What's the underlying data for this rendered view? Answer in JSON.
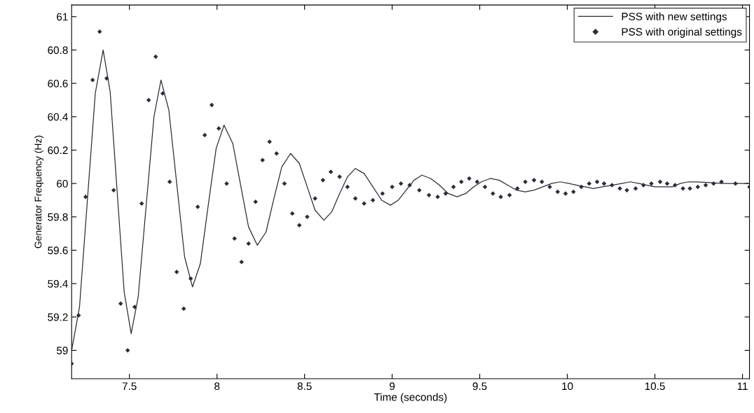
{
  "chart_data": {
    "type": "line",
    "xlabel": "Time (seconds)",
    "ylabel": "Generator Frequency (Hz)",
    "xlim": [
      7.17,
      11.04
    ],
    "xticks": [
      7.5,
      8,
      8.5,
      9,
      9.5,
      10,
      10.5,
      11
    ],
    "ylim": [
      58.83,
      61.07
    ],
    "yticks": [
      59,
      59.2,
      59.4,
      59.6,
      59.8,
      60,
      60.2,
      60.4,
      60.6,
      60.8,
      61
    ],
    "grid": false,
    "legend": "top right",
    "series": [
      {
        "name": "PSS with new settings",
        "marker": "none",
        "line_style": "solid",
        "color": "#2a2e38",
        "x": [
          7.17,
          7.215,
          7.26,
          7.305,
          7.35,
          7.39,
          7.43,
          7.47,
          7.51,
          7.55,
          7.595,
          7.64,
          7.68,
          7.725,
          7.77,
          7.815,
          7.86,
          7.905,
          7.95,
          7.995,
          8.04,
          8.09,
          8.135,
          8.18,
          8.23,
          8.28,
          8.325,
          8.37,
          8.42,
          8.47,
          8.515,
          8.56,
          8.61,
          8.655,
          8.7,
          8.745,
          8.79,
          8.84,
          8.89,
          8.94,
          8.99,
          9.035,
          9.08,
          9.125,
          9.17,
          9.22,
          9.27,
          9.32,
          9.37,
          9.42,
          9.465,
          9.51,
          9.56,
          9.61,
          9.66,
          9.71,
          9.76,
          9.81,
          9.86,
          9.91,
          9.96,
          10.01,
          10.055,
          10.1,
          10.15,
          10.2,
          10.255,
          10.31,
          10.36,
          10.41,
          10.455,
          10.5,
          10.55,
          10.6,
          10.645,
          10.69,
          10.74,
          10.89,
          11.04
        ],
        "values": [
          59.0,
          59.26,
          59.9,
          60.54,
          60.8,
          60.55,
          59.95,
          59.35,
          59.1,
          59.32,
          59.86,
          60.4,
          60.62,
          60.44,
          60.0,
          59.56,
          59.38,
          59.52,
          59.87,
          60.21,
          60.35,
          60.24,
          59.99,
          59.74,
          59.63,
          59.71,
          59.91,
          60.1,
          60.18,
          60.12,
          59.98,
          59.84,
          59.78,
          59.83,
          59.94,
          60.04,
          60.09,
          60.06,
          59.98,
          59.9,
          59.87,
          59.9,
          59.96,
          60.02,
          60.05,
          60.03,
          59.99,
          59.94,
          59.92,
          59.94,
          59.98,
          60.01,
          60.03,
          60.02,
          59.99,
          59.96,
          59.95,
          59.96,
          59.98,
          60.0,
          60.01,
          60.0,
          59.99,
          59.98,
          59.97,
          59.98,
          59.99,
          60.0,
          60.01,
          60.0,
          59.99,
          59.98,
          59.98,
          59.98,
          60.0,
          60.01,
          60.01,
          60.0,
          60.0
        ]
      },
      {
        "name": "PSS with original settings",
        "type": "scatter",
        "marker": "diamond",
        "color": "#2a2e38",
        "x": [
          7.17,
          7.21,
          7.25,
          7.29,
          7.33,
          7.37,
          7.41,
          7.45,
          7.49,
          7.53,
          7.57,
          7.61,
          7.65,
          7.69,
          7.73,
          7.77,
          7.81,
          7.85,
          7.89,
          7.93,
          7.97,
          8.01,
          8.055,
          8.1,
          8.14,
          8.18,
          8.22,
          8.26,
          8.3,
          8.34,
          8.385,
          8.43,
          8.47,
          8.515,
          8.56,
          8.605,
          8.65,
          8.7,
          8.745,
          8.79,
          8.84,
          8.89,
          8.945,
          9.0,
          9.05,
          9.1,
          9.155,
          9.21,
          9.26,
          9.305,
          9.35,
          9.395,
          9.44,
          9.485,
          9.53,
          9.575,
          9.62,
          9.67,
          9.715,
          9.76,
          9.81,
          9.855,
          9.9,
          9.945,
          9.99,
          10.035,
          10.08,
          10.125,
          10.17,
          10.21,
          10.255,
          10.3,
          10.34,
          10.39,
          10.435,
          10.48,
          10.53,
          10.57,
          10.615,
          10.66,
          10.7,
          10.745,
          10.79,
          10.835,
          10.88,
          10.96,
          11.04
        ],
        "values": [
          58.92,
          59.21,
          59.92,
          60.62,
          60.91,
          60.63,
          59.96,
          59.28,
          59.0,
          59.26,
          59.88,
          60.5,
          60.76,
          60.54,
          60.01,
          59.47,
          59.25,
          59.43,
          59.86,
          60.29,
          60.47,
          60.33,
          60.0,
          59.67,
          59.53,
          59.64,
          59.89,
          60.14,
          60.25,
          60.18,
          60.0,
          59.82,
          59.75,
          59.8,
          59.91,
          60.02,
          60.07,
          60.04,
          59.98,
          59.91,
          59.88,
          59.9,
          59.94,
          59.98,
          60.0,
          59.99,
          59.96,
          59.93,
          59.92,
          59.94,
          59.98,
          60.01,
          60.03,
          60.01,
          59.98,
          59.94,
          59.92,
          59.93,
          59.97,
          60.01,
          60.02,
          60.01,
          59.98,
          59.95,
          59.94,
          59.95,
          59.98,
          60.0,
          60.01,
          60.0,
          59.99,
          59.97,
          59.96,
          59.97,
          59.99,
          60.0,
          60.01,
          60.0,
          59.99,
          59.97,
          59.97,
          59.98,
          59.99,
          60.0,
          60.01,
          60.0,
          59.98
        ]
      }
    ]
  }
}
